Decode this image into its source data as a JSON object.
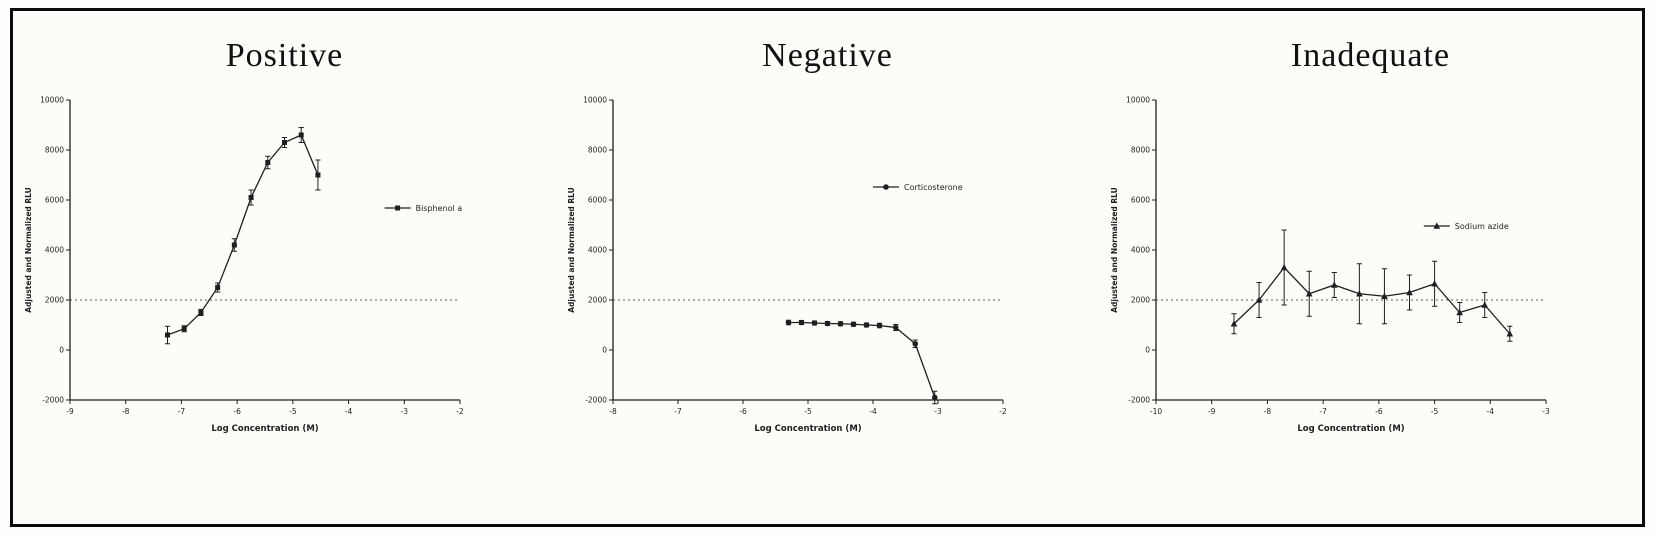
{
  "figure": {
    "ink": "#1f1f1f",
    "panels": [
      {
        "title": "Positive"
      },
      {
        "title": "Negative"
      },
      {
        "title": "Inadequate"
      }
    ]
  },
  "chart_data": [
    {
      "type": "line",
      "title": "Positive",
      "legend": "Bisphenol a",
      "xlabel": "Log Concentration (M)",
      "ylabel": "Adjusted and Normalized RLU",
      "xlim": [
        -9,
        -2
      ],
      "ylim": [
        -2000,
        10000
      ],
      "xticks": [
        -9,
        -8,
        -7,
        -6,
        -5,
        -4,
        -3,
        -2
      ],
      "yticks": [
        10000,
        8000,
        6000,
        4000,
        2000,
        0,
        -2000
      ],
      "threshold": 2000,
      "marker": "square",
      "legend_frac": [
        0.84,
        0.36
      ],
      "x": [
        -7.25,
        -6.95,
        -6.65,
        -6.35,
        -6.05,
        -5.75,
        -5.45,
        -5.15,
        -4.85,
        -4.55
      ],
      "y": [
        600,
        850,
        1500,
        2500,
        4200,
        6100,
        7500,
        8300,
        8600,
        7000
      ],
      "yerr": [
        350,
        120,
        120,
        180,
        250,
        300,
        250,
        200,
        300,
        600
      ]
    },
    {
      "type": "line",
      "title": "Negative",
      "legend": "Corticosterone",
      "xlabel": "Log Concentration (M)",
      "ylabel": "Adjusted and Normalized RLU",
      "xlim": [
        -8,
        -2
      ],
      "ylim": [
        -2000,
        10000
      ],
      "xticks": [
        -8,
        -7,
        -6,
        -5,
        -4,
        -3,
        -2
      ],
      "yticks": [
        10000,
        8000,
        6000,
        4000,
        2000,
        0,
        -2000
      ],
      "threshold": 2000,
      "marker": "circle",
      "legend_frac": [
        0.7,
        0.29
      ],
      "x": [
        -5.3,
        -5.1,
        -4.9,
        -4.7,
        -4.5,
        -4.3,
        -4.1,
        -3.9,
        -3.65,
        -3.35,
        -3.05
      ],
      "y": [
        1100,
        1100,
        1080,
        1060,
        1050,
        1030,
        1000,
        980,
        900,
        250,
        -1900
      ],
      "yerr": [
        90,
        80,
        80,
        80,
        80,
        80,
        80,
        90,
        120,
        150,
        250
      ]
    },
    {
      "type": "line",
      "title": "Inadequate",
      "legend": "Sodium azide",
      "xlabel": "Log Concentration (M)",
      "ylabel": "Adjusted and Normalized RLU",
      "xlim": [
        -10,
        -3
      ],
      "ylim": [
        -2000,
        10000
      ],
      "xticks": [
        -10,
        -9,
        -8,
        -7,
        -6,
        -5,
        -4,
        -3
      ],
      "yticks": [
        10000,
        8000,
        6000,
        4000,
        2000,
        0,
        -2000
      ],
      "threshold": 2000,
      "marker": "triangle",
      "legend_frac": [
        0.72,
        0.42
      ],
      "x": [
        -8.6,
        -8.15,
        -7.7,
        -7.25,
        -6.8,
        -6.35,
        -5.9,
        -5.45,
        -5.0,
        -4.55,
        -4.1,
        -3.65
      ],
      "y": [
        1050,
        2000,
        3300,
        2250,
        2600,
        2250,
        2150,
        2300,
        2650,
        1500,
        1800,
        650
      ],
      "yerr": [
        400,
        700,
        1500,
        900,
        500,
        1200,
        1100,
        700,
        900,
        400,
        500,
        300
      ]
    }
  ]
}
